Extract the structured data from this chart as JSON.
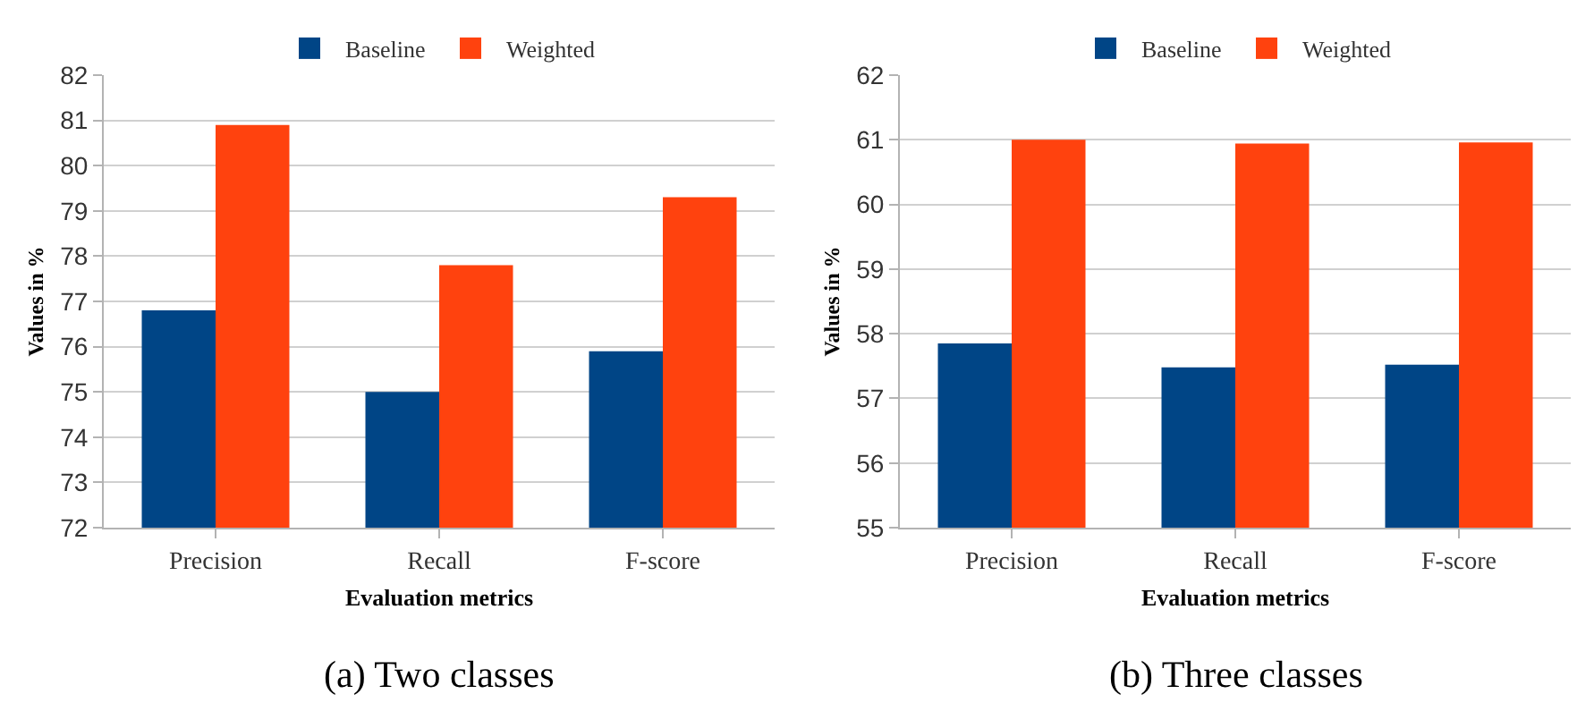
{
  "chart_data": [
    {
      "type": "bar",
      "categories": [
        "Precision",
        "Recall",
        "F-score"
      ],
      "xlabel": "Evaluation metrics",
      "ylabel": "Values in %",
      "ylim": [
        72,
        82
      ],
      "yticks": [
        72,
        73,
        74,
        75,
        76,
        77,
        78,
        79,
        80,
        81,
        82
      ],
      "grid": "y",
      "legend": "top",
      "annotations": [
        "(a) Two classes"
      ],
      "series": [
        {
          "name": "Baseline",
          "color": "#004586",
          "values": [
            76.8,
            75.0,
            75.9
          ]
        },
        {
          "name": "Weighted",
          "color": "#ff420e",
          "values": [
            80.9,
            77.8,
            79.3
          ]
        }
      ]
    },
    {
      "type": "bar",
      "categories": [
        "Precision",
        "Recall",
        "F-score"
      ],
      "xlabel": "Evaluation metrics",
      "ylabel": "Values in %",
      "ylim": [
        55,
        62
      ],
      "yticks": [
        55,
        56,
        57,
        58,
        59,
        60,
        61,
        62
      ],
      "grid": "y",
      "legend": "top",
      "annotations": [
        "(b) Three classes"
      ],
      "series": [
        {
          "name": "Baseline",
          "color": "#004586",
          "values": [
            57.85,
            57.48,
            57.52
          ]
        },
        {
          "name": "Weighted",
          "color": "#ff420e",
          "values": [
            61.0,
            60.94,
            60.96
          ]
        }
      ]
    }
  ]
}
